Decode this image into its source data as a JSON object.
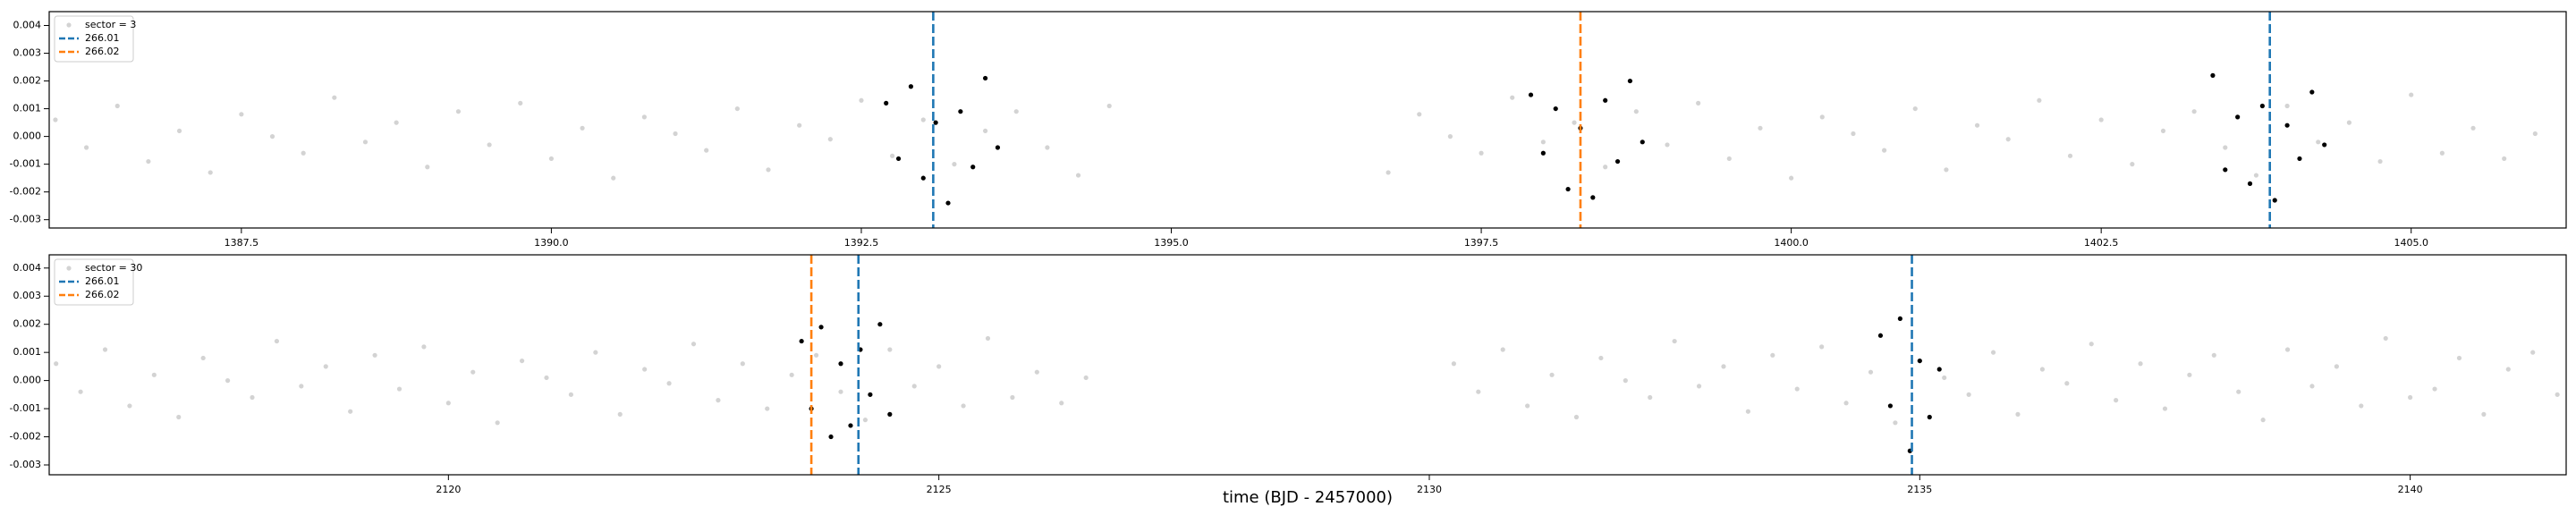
{
  "chart_data": [
    {
      "type": "scatter",
      "xlim": [
        1385.95,
        1406.25
      ],
      "ylim": [
        -0.0033,
        0.0045
      ],
      "xticks": [
        1387.5,
        {
          "value": 1390,
          "label": "1390.0"
        },
        1392.5,
        {
          "value": 1395,
          "label": "1395.0"
        },
        1397.5,
        {
          "value": 1400,
          "label": "1400.0"
        },
        1402.5,
        {
          "value": 1405,
          "label": "1405.0"
        }
      ],
      "yticks": [
        -0.003,
        -0.002,
        -0.001,
        {
          "value": 0,
          "label": "0.000"
        },
        0.001,
        0.002,
        0.003,
        0.004
      ],
      "legend": "upper left",
      "series": [
        {
          "name": "sector = 3",
          "color": "#d3d3d3",
          "x": [
            1386,
            1386.25,
            1386.5,
            1386.75,
            1387,
            1387.25,
            1387.5,
            1387.75,
            1388,
            1388.25,
            1388.5,
            1388.75,
            1389,
            1389.25,
            1389.5,
            1389.75,
            1390,
            1390.25,
            1390.5,
            1390.75,
            1391,
            1391.25,
            1391.5,
            1391.75,
            1392,
            1392.25,
            1392.5,
            1392.75,
            1393,
            1393.25,
            1393.5,
            1393.75,
            1394,
            1394.25,
            1394.5,
            1396.75,
            1397,
            1397.25,
            1397.5,
            1397.75,
            1398,
            1398.25,
            1398.5,
            1398.75,
            1399,
            1399.25,
            1399.5,
            1399.75,
            1400,
            1400.25,
            1400.5,
            1400.75,
            1401,
            1401.25,
            1401.5,
            1401.75,
            1402,
            1402.25,
            1402.5,
            1402.75,
            1403,
            1403.25,
            1403.5,
            1403.75,
            1404,
            1404.25,
            1404.5,
            1404.75,
            1405,
            1405.25,
            1405.5,
            1405.75,
            1406
          ],
          "values": [
            0.0006,
            -0.0004,
            0.0011,
            -0.0009,
            0.0002,
            -0.0013,
            0.0008,
            0,
            -0.0006,
            0.0014,
            -0.0002,
            0.0005,
            -0.0011,
            0.0009,
            -0.0003,
            0.0012,
            -0.0008,
            0.0003,
            -0.0015,
            0.0007,
            0.0001,
            -0.0005,
            0.001,
            -0.0012,
            0.0004,
            -0.0001,
            0.0013,
            -0.0007,
            0.0006,
            -0.001,
            0.0002,
            0.0009,
            -0.0004,
            -0.0014,
            0.0011,
            -0.0013,
            0.0008,
            0,
            -0.0006,
            0.0014,
            -0.0002,
            0.0005,
            -0.0011,
            0.0009,
            -0.0003,
            0.0012,
            -0.0008,
            0.0003,
            -0.0015,
            0.0007,
            0.0001,
            -0.0005,
            0.001,
            -0.0012,
            0.0004,
            -0.0001,
            0.0013,
            -0.0007,
            0.0006,
            -0.001,
            0.0002,
            0.0009,
            -0.0004,
            -0.0014,
            0.0011,
            -0.0002,
            0.0005,
            -0.0009,
            0.0015,
            -0.0006,
            0.0003,
            -0.0008,
            0.0001
          ]
        },
        {
          "color": "#000000",
          "x": [
            1392.7,
            1392.8,
            1392.9,
            1393,
            1393.1,
            1393.2,
            1393.3,
            1393.4,
            1393.5,
            1393.6,
            1397.9,
            1398,
            1398.1,
            1398.2,
            1398.3,
            1398.4,
            1398.5,
            1398.6,
            1398.7,
            1398.8,
            1403.4,
            1403.5,
            1403.6,
            1403.7,
            1403.8,
            1403.9,
            1404,
            1404.1,
            1404.2,
            1404.3
          ],
          "values": [
            0.0012,
            -0.0008,
            0.0018,
            -0.0015,
            0.0005,
            -0.0024,
            0.0009,
            -0.0011,
            0.0021,
            -0.0004,
            0.0015,
            -0.0006,
            0.001,
            -0.0019,
            0.0003,
            -0.0022,
            0.0013,
            -0.0009,
            0.002,
            -0.0002,
            0.0022,
            -0.0012,
            0.0007,
            -0.0017,
            0.0011,
            -0.0023,
            0.0004,
            -0.0008,
            0.0016,
            -0.0003
          ]
        }
      ],
      "vlines": [
        {
          "name": "266.01",
          "color": "#1f77b4",
          "x": [
            1393.08,
            1403.86
          ]
        },
        {
          "name": "266.02",
          "color": "#ff7f0e",
          "x": [
            1398.3
          ]
        }
      ]
    },
    {
      "type": "scatter",
      "xlim": [
        2115.93,
        2141.59
      ],
      "ylim": [
        -0.00335,
        0.00447
      ],
      "xticks": [
        2120,
        2125,
        2130,
        2135,
        2140
      ],
      "yticks": [
        -0.003,
        -0.002,
        -0.001,
        {
          "value": 0,
          "label": "0.000"
        },
        0.001,
        0.002,
        0.003,
        0.004
      ],
      "legend": "upper left",
      "xlabel": "time (BJD - 2457000)",
      "series": [
        {
          "name": "sector = 30",
          "color": "#d3d3d3",
          "x": [
            2116,
            2116.25,
            2116.5,
            2116.75,
            2117,
            2117.25,
            2117.5,
            2117.75,
            2118,
            2118.25,
            2118.5,
            2118.75,
            2119,
            2119.25,
            2119.5,
            2119.75,
            2120,
            2120.25,
            2120.5,
            2120.75,
            2121,
            2121.25,
            2121.5,
            2121.75,
            2122,
            2122.25,
            2122.5,
            2122.75,
            2123,
            2123.25,
            2123.5,
            2123.75,
            2124,
            2124.25,
            2124.5,
            2124.75,
            2125,
            2125.25,
            2125.5,
            2125.75,
            2126,
            2126.25,
            2126.5,
            2130.25,
            2130.5,
            2130.75,
            2131,
            2131.25,
            2131.5,
            2131.75,
            2132,
            2132.25,
            2132.5,
            2132.75,
            2133,
            2133.25,
            2133.5,
            2133.75,
            2134,
            2134.25,
            2134.5,
            2134.75,
            2135,
            2135.25,
            2135.5,
            2135.75,
            2136,
            2136.25,
            2136.5,
            2136.75,
            2137,
            2137.25,
            2137.5,
            2137.75,
            2138,
            2138.25,
            2138.5,
            2138.75,
            2139,
            2139.25,
            2139.5,
            2139.75,
            2140,
            2140.25,
            2140.5,
            2140.75,
            2141,
            2141.25,
            2141.5
          ],
          "values": [
            0.0006,
            -0.0004,
            0.0011,
            -0.0009,
            0.0002,
            -0.0013,
            0.0008,
            0,
            -0.0006,
            0.0014,
            -0.0002,
            0.0005,
            -0.0011,
            0.0009,
            -0.0003,
            0.0012,
            -0.0008,
            0.0003,
            -0.0015,
            0.0007,
            0.0001,
            -0.0005,
            0.001,
            -0.0012,
            0.0004,
            -0.0001,
            0.0013,
            -0.0007,
            0.0006,
            -0.001,
            0.0002,
            0.0009,
            -0.0004,
            -0.0014,
            0.0011,
            -0.0002,
            0.0005,
            -0.0009,
            0.0015,
            -0.0006,
            0.0003,
            -0.0008,
            0.0001,
            0.0006,
            -0.0004,
            0.0011,
            -0.0009,
            0.0002,
            -0.0013,
            0.0008,
            0,
            -0.0006,
            0.0014,
            -0.0002,
            0.0005,
            -0.0011,
            0.0009,
            -0.0003,
            0.0012,
            -0.0008,
            0.0003,
            -0.0015,
            0.0007,
            0.0001,
            -0.0005,
            0.001,
            -0.0012,
            0.0004,
            -0.0001,
            0.0013,
            -0.0007,
            0.0006,
            -0.001,
            0.0002,
            0.0009,
            -0.0004,
            -0.0014,
            0.0011,
            -0.0002,
            0.0005,
            -0.0009,
            0.0015,
            -0.0006,
            -0.0003,
            0.0008,
            -0.0012,
            0.0004,
            0.001,
            -0.0005
          ]
        },
        {
          "color": "#000000",
          "x": [
            2123.6,
            2123.7,
            2123.8,
            2123.9,
            2124,
            2124.1,
            2124.2,
            2124.3,
            2124.4,
            2124.5,
            2134.6,
            2134.7,
            2134.8,
            2134.9,
            2135,
            2135.1,
            2135.2
          ],
          "values": [
            0.0014,
            -0.001,
            0.0019,
            -0.002,
            0.0006,
            -0.0016,
            0.0011,
            -0.0005,
            0.002,
            -0.0012,
            0.0016,
            -0.0009,
            0.0022,
            -0.0025,
            0.0007,
            -0.0013,
            0.0004
          ]
        }
      ],
      "vlines": [
        {
          "name": "266.01",
          "color": "#1f77b4",
          "x": [
            2124.18,
            2134.92
          ]
        },
        {
          "name": "266.02",
          "color": "#ff7f0e",
          "x": [
            2123.7
          ]
        }
      ]
    }
  ]
}
